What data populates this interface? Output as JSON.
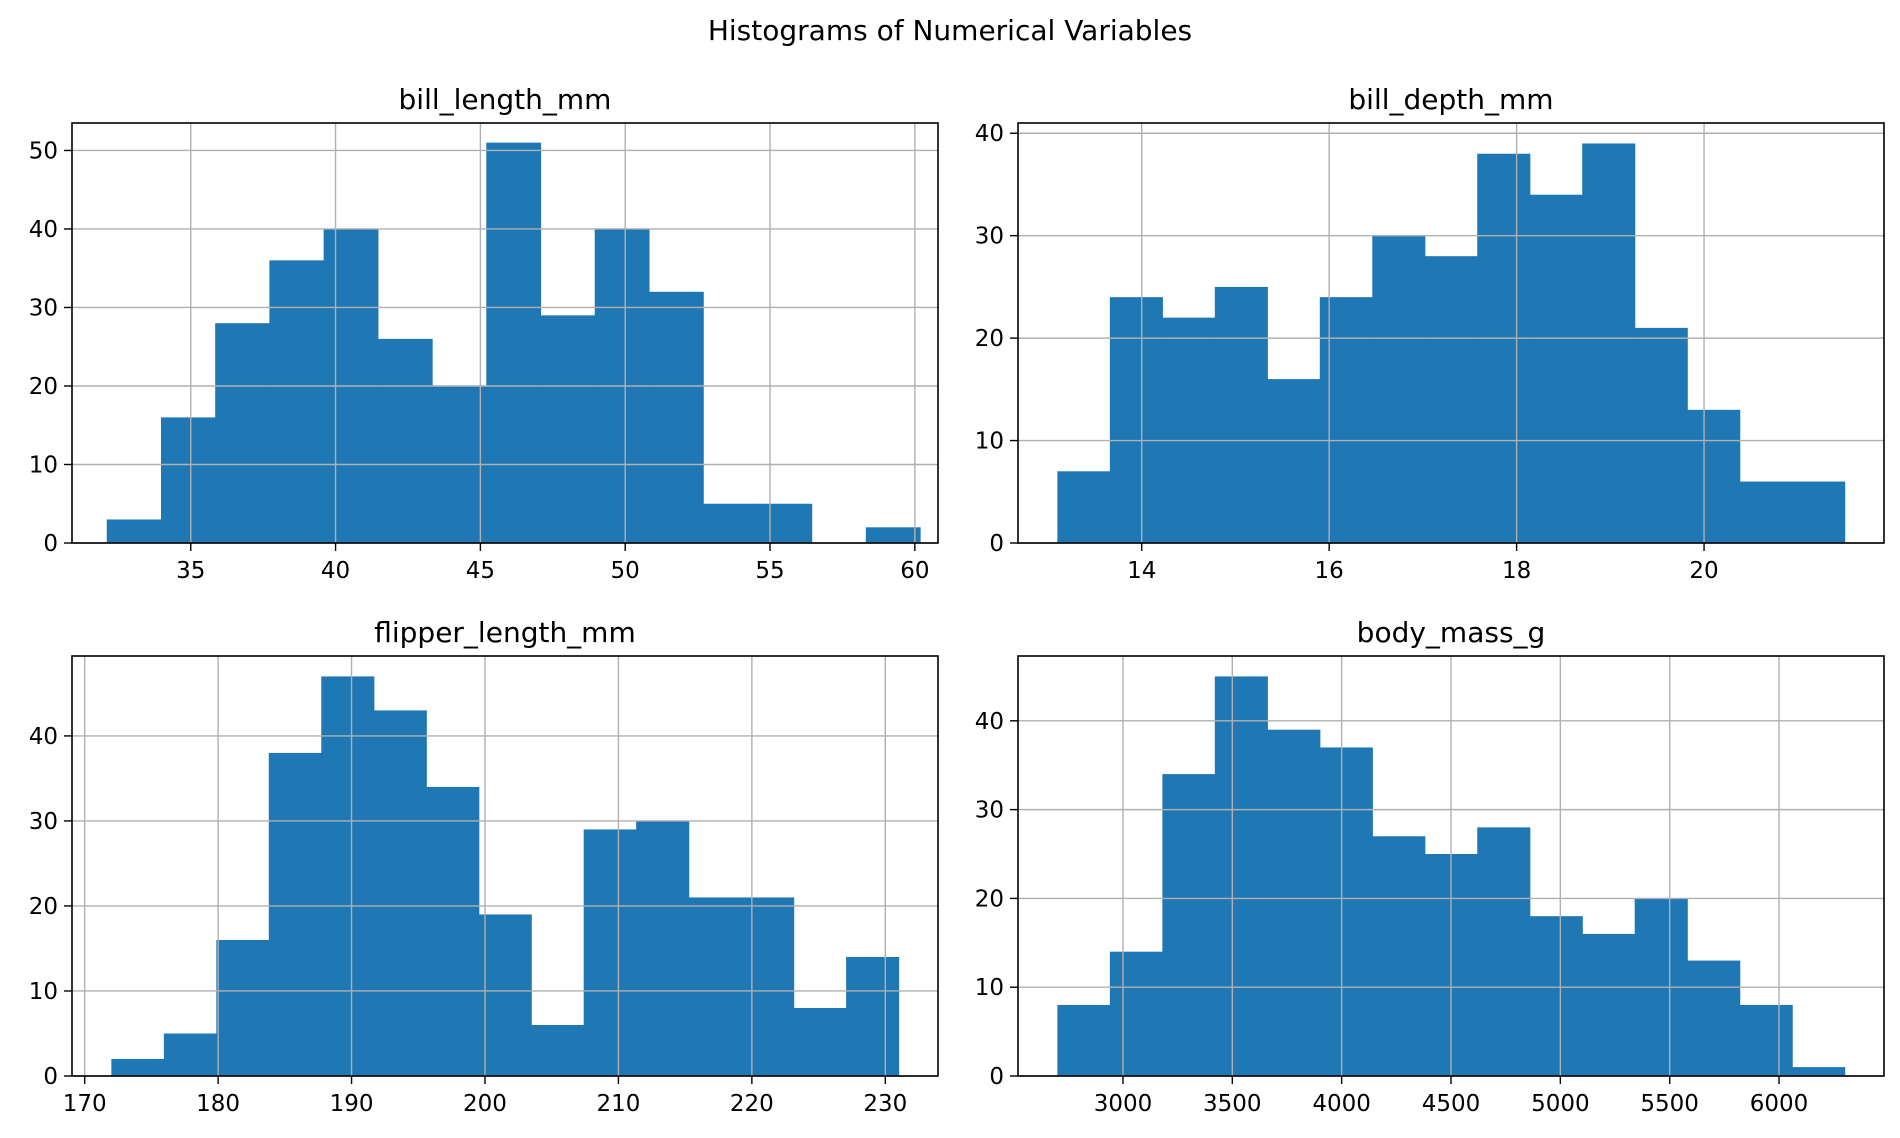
{
  "figure": {
    "suptitle": "Histograms of Numerical Variables"
  },
  "style": {
    "bar_color": "#1f77b4",
    "grid_color": "#b0b0b0",
    "axis_color": "#000000"
  },
  "chart_data": [
    {
      "type": "bar",
      "title": "bill_length_mm",
      "xlim": [
        30.9,
        60.8
      ],
      "ylim": [
        0,
        53.5
      ],
      "xticks": [
        35,
        40,
        45,
        50,
        55,
        60
      ],
      "yticks": [
        0,
        10,
        20,
        30,
        40,
        50
      ],
      "grid": true,
      "bin_start": 32.1,
      "bin_width": 1.872,
      "values": [
        3,
        16,
        28,
        36,
        40,
        26,
        20,
        51,
        29,
        40,
        32,
        5,
        5,
        0,
        2
      ]
    },
    {
      "type": "bar",
      "title": "bill_depth_mm",
      "xlim": [
        12.68,
        21.92
      ],
      "ylim": [
        0,
        41
      ],
      "xticks": [
        14,
        16,
        18,
        20
      ],
      "yticks": [
        0,
        10,
        20,
        30,
        40
      ],
      "grid": true,
      "bin_start": 13.1,
      "bin_width": 0.56,
      "values": [
        7,
        24,
        22,
        25,
        16,
        24,
        30,
        28,
        38,
        34,
        39,
        21,
        13,
        6,
        6
      ]
    },
    {
      "type": "bar",
      "title": "flipper_length_mm",
      "xlim": [
        169.05,
        233.95
      ],
      "ylim": [
        0,
        49.4
      ],
      "xticks": [
        170,
        180,
        190,
        200,
        210,
        220,
        230
      ],
      "yticks": [
        0,
        10,
        20,
        30,
        40
      ],
      "grid": true,
      "bin_start": 172,
      "bin_width": 3.933,
      "values": [
        2,
        5,
        16,
        38,
        47,
        43,
        34,
        19,
        6,
        29,
        30,
        21,
        21,
        8,
        14
      ]
    },
    {
      "type": "bar",
      "title": "body_mass_g",
      "xlim": [
        2520,
        6480
      ],
      "ylim": [
        0,
        47.3
      ],
      "xticks": [
        3000,
        3500,
        4000,
        4500,
        5000,
        5500,
        6000
      ],
      "yticks": [
        0,
        10,
        20,
        30,
        40
      ],
      "grid": true,
      "bin_start": 2700,
      "bin_width": 240,
      "values": [
        8,
        14,
        34,
        45,
        39,
        37,
        27,
        25,
        28,
        18,
        16,
        20,
        13,
        8,
        1
      ]
    }
  ]
}
